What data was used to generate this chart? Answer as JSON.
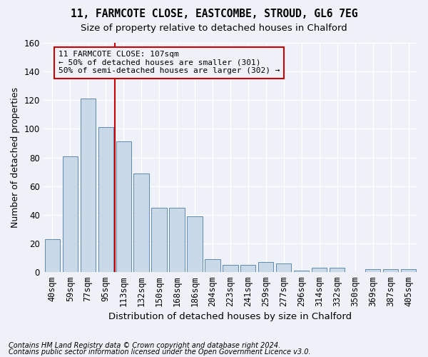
{
  "title1": "11, FARMCOTE CLOSE, EASTCOMBE, STROUD, GL6 7EG",
  "title2": "Size of property relative to detached houses in Chalford",
  "xlabel": "Distribution of detached houses by size in Chalford",
  "ylabel": "Number of detached properties",
  "categories": [
    "40sqm",
    "59sqm",
    "77sqm",
    "95sqm",
    "113sqm",
    "132sqm",
    "150sqm",
    "168sqm",
    "186sqm",
    "204sqm",
    "223sqm",
    "241sqm",
    "259sqm",
    "277sqm",
    "296sqm",
    "314sqm",
    "332sqm",
    "350sqm",
    "369sqm",
    "387sqm",
    "405sqm"
  ],
  "values": [
    23,
    81,
    121,
    101,
    91,
    69,
    45,
    45,
    39,
    9,
    5,
    5,
    7,
    6,
    1,
    3,
    3,
    0,
    2,
    2,
    2
  ],
  "bar_color": "#c9d9e8",
  "bar_edge_color": "#5f8ab0",
  "vline_color": "#cc0000",
  "box_edge_color": "#cc0000",
  "annotation_line1": "11 FARMCOTE CLOSE: 107sqm",
  "annotation_line2": "← 50% of detached houses are smaller (301)",
  "annotation_line3": "50% of semi-detached houses are larger (302) →",
  "ylim_max": 160,
  "yticks": [
    0,
    20,
    40,
    60,
    80,
    100,
    120,
    140,
    160
  ],
  "footnote1": "Contains HM Land Registry data © Crown copyright and database right 2024.",
  "footnote2": "Contains public sector information licensed under the Open Government Licence v3.0.",
  "bg_color": "#eef2f8",
  "grid_color": "#ffffff",
  "vline_pos": 3.5
}
